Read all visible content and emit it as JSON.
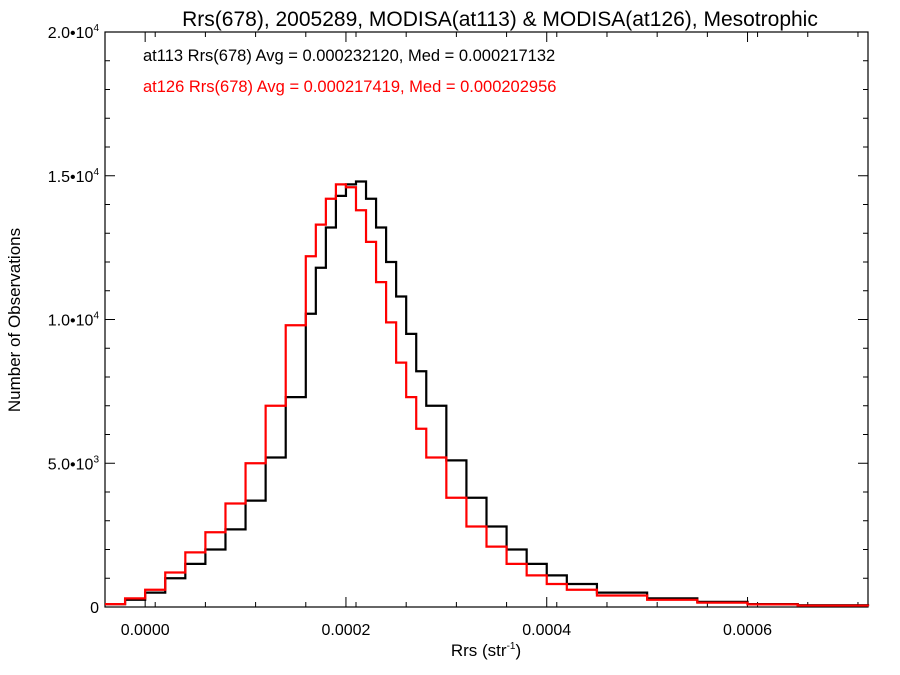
{
  "chart_data": {
    "type": "line",
    "title": "Rrs(678), 2005289, MODISA(at113) & MODISA(at126), Mesotrophic",
    "xlabel": "Rrs (str",
    "xlabel_sup": "-1",
    "xlabel_close": ")",
    "ylabel": "Number of Observations",
    "xlim": [
      -4e-05,
      0.00072
    ],
    "ylim": [
      0,
      20000
    ],
    "xticks": [
      {
        "value": 0.0,
        "label": "0.0000"
      },
      {
        "value": 0.0002,
        "label": "0.0002"
      },
      {
        "value": 0.0004,
        "label": "0.0004"
      },
      {
        "value": 0.0006,
        "label": "0.0006"
      }
    ],
    "yticks": [
      {
        "value": 0,
        "base": "0",
        "exp": ""
      },
      {
        "value": 5000,
        "base": "5.0•10",
        "exp": "3"
      },
      {
        "value": 10000,
        "base": "1.0•10",
        "exp": "4"
      },
      {
        "value": 15000,
        "base": "1.5•10",
        "exp": "4"
      },
      {
        "value": 20000,
        "base": "2.0•10",
        "exp": "4"
      }
    ],
    "legend": [
      {
        "text": "at113 Rrs(678) Avg = 0.000232120, Med = 0.000217132",
        "color": "#000000"
      },
      {
        "text": "at126 Rrs(678) Avg = 0.000217419, Med = 0.000202956",
        "color": "#ff0000"
      }
    ],
    "series": [
      {
        "color": "#000000",
        "points": [
          [
            -4e-05,
            100
          ],
          [
            -2e-05,
            250
          ],
          [
            0.0,
            500
          ],
          [
            2e-05,
            1000
          ],
          [
            4e-05,
            1500
          ],
          [
            6e-05,
            2000
          ],
          [
            8e-05,
            2700
          ],
          [
            0.0001,
            3700
          ],
          [
            0.00012,
            5200
          ],
          [
            0.00014,
            7300
          ],
          [
            0.00016,
            10200
          ],
          [
            0.00017,
            11800
          ],
          [
            0.00018,
            13200
          ],
          [
            0.00019,
            14300
          ],
          [
            0.0002,
            14700
          ],
          [
            0.00021,
            14800
          ],
          [
            0.00022,
            14200
          ],
          [
            0.00023,
            13200
          ],
          [
            0.00024,
            12000
          ],
          [
            0.00025,
            10800
          ],
          [
            0.00026,
            9500
          ],
          [
            0.00027,
            8200
          ],
          [
            0.00028,
            7000
          ],
          [
            0.0003,
            5100
          ],
          [
            0.00032,
            3800
          ],
          [
            0.00034,
            2800
          ],
          [
            0.00036,
            2000
          ],
          [
            0.00038,
            1500
          ],
          [
            0.0004,
            1100
          ],
          [
            0.00042,
            800
          ],
          [
            0.00045,
            500
          ],
          [
            0.0005,
            300
          ],
          [
            0.00055,
            180
          ],
          [
            0.0006,
            100
          ],
          [
            0.00065,
            60
          ],
          [
            0.00072,
            30
          ]
        ]
      },
      {
        "color": "#ff0000",
        "points": [
          [
            -4e-05,
            100
          ],
          [
            -2e-05,
            300
          ],
          [
            0.0,
            600
          ],
          [
            2e-05,
            1200
          ],
          [
            4e-05,
            1900
          ],
          [
            6e-05,
            2600
          ],
          [
            8e-05,
            3600
          ],
          [
            0.0001,
            5000
          ],
          [
            0.00012,
            7000
          ],
          [
            0.00014,
            9800
          ],
          [
            0.00016,
            12200
          ],
          [
            0.00017,
            13300
          ],
          [
            0.00018,
            14200
          ],
          [
            0.00019,
            14700
          ],
          [
            0.0002,
            14600
          ],
          [
            0.00021,
            13800
          ],
          [
            0.00022,
            12700
          ],
          [
            0.00023,
            11300
          ],
          [
            0.00024,
            9900
          ],
          [
            0.00025,
            8500
          ],
          [
            0.00026,
            7300
          ],
          [
            0.00027,
            6200
          ],
          [
            0.00028,
            5200
          ],
          [
            0.0003,
            3800
          ],
          [
            0.00032,
            2800
          ],
          [
            0.00034,
            2100
          ],
          [
            0.00036,
            1500
          ],
          [
            0.00038,
            1100
          ],
          [
            0.0004,
            800
          ],
          [
            0.00042,
            600
          ],
          [
            0.00045,
            400
          ],
          [
            0.0005,
            250
          ],
          [
            0.00055,
            150
          ],
          [
            0.0006,
            90
          ],
          [
            0.00065,
            50
          ],
          [
            0.00072,
            25
          ]
        ]
      }
    ]
  }
}
